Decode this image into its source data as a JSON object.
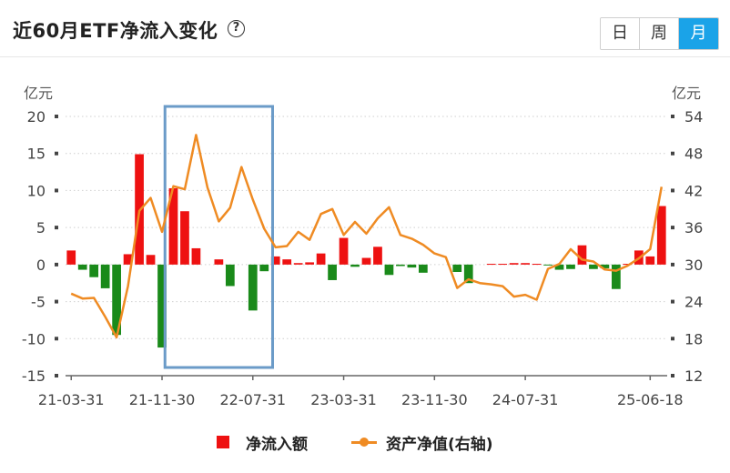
{
  "header": {
    "title": "近60月ETF净流入变化",
    "help_icon": "question-circle-icon",
    "tabs": [
      {
        "label": "日",
        "active": false
      },
      {
        "label": "周",
        "active": false
      },
      {
        "label": "月",
        "active": true
      }
    ]
  },
  "colors": {
    "inflow_positive": "#ee1111",
    "inflow_negative": "#1a8a1a",
    "nav_line": "#ef8b23",
    "highlight_box": "#6b9bc8",
    "tab_active": "#1aa3e8"
  },
  "chart_data": {
    "type": "bar",
    "title": "近60月ETF净流入变化",
    "y_left_unit": "亿元",
    "y_right_unit": "亿元",
    "ylim_left": [
      -15,
      20
    ],
    "ylim_right": [
      12,
      54
    ],
    "yticks_left": [
      20,
      15,
      10,
      5,
      0,
      -5,
      -10,
      -15
    ],
    "yticks_right": [
      54,
      48,
      42,
      36,
      30,
      24,
      18,
      12
    ],
    "xtick_labels": [
      {
        "index": 0,
        "label": "21-03-31"
      },
      {
        "index": 8,
        "label": "21-11-30"
      },
      {
        "index": 16,
        "label": "22-07-31"
      },
      {
        "index": 24,
        "label": "23-03-31"
      },
      {
        "index": 32,
        "label": "23-11-30"
      },
      {
        "index": 40,
        "label": "24-07-31"
      },
      {
        "index": 51,
        "label": "25-06-18"
      }
    ],
    "grid": "horizontal-dotted",
    "legend_position": "bottom",
    "highlight_range": [
      9,
      17
    ],
    "series": [
      {
        "name": "净流入额",
        "type": "bar",
        "axis": "left",
        "values": [
          1.9,
          -0.7,
          -1.7,
          -3.2,
          -9.5,
          1.4,
          14.9,
          1.3,
          -11.2,
          10.3,
          7.2,
          2.2,
          0,
          0.7,
          -2.9,
          0,
          -6.2,
          -0.9,
          1.1,
          0.7,
          0.2,
          0.3,
          1.5,
          -2.1,
          3.6,
          -0.3,
          0.9,
          2.4,
          -1.4,
          -0.2,
          -0.4,
          -1.1,
          0,
          0,
          -1.0,
          -2.5,
          0,
          0.1,
          0.1,
          0.2,
          0.2,
          0.1,
          -0.1,
          -0.7,
          -0.6,
          2.6,
          -0.6,
          -0.5,
          -3.3,
          0.1,
          1.9,
          1.1,
          7.9
        ]
      },
      {
        "name": "资产净值(右轴)",
        "type": "line",
        "axis": "right",
        "values": [
          25.3,
          24.5,
          24.6,
          21.5,
          18.2,
          26.5,
          38.7,
          40.8,
          35.3,
          42.7,
          42.2,
          51.0,
          42.5,
          37.0,
          39.2,
          45.8,
          40.5,
          35.8,
          32.8,
          33.0,
          35.3,
          34.0,
          38.2,
          39.0,
          34.8,
          36.9,
          35.0,
          37.5,
          39.3,
          34.8,
          34.2,
          33.2,
          31.8,
          31.2,
          26.2,
          27.6,
          27.0,
          26.8,
          26.5,
          24.8,
          25.1,
          24.3,
          29.3,
          30.1,
          32.5,
          30.8,
          30.5,
          29.2,
          29.0,
          29.8,
          31.0,
          32.5,
          42.6
        ]
      }
    ]
  }
}
